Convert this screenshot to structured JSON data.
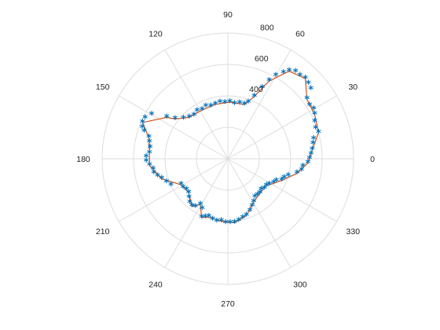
{
  "chart_data": {
    "type": "scatter",
    "projection": "polar",
    "theta_unit": "degrees",
    "theta_zero": "right",
    "theta_direction": "counterclockwise",
    "theta_ticks": [
      0,
      30,
      60,
      90,
      120,
      150,
      180,
      210,
      240,
      270,
      300,
      330
    ],
    "theta_tick_labels": [
      "0",
      "30",
      "60",
      "90",
      "120",
      "150",
      "180",
      "210",
      "240",
      "270",
      "300",
      "330"
    ],
    "rlim": [
      0,
      800
    ],
    "r_ticks": [
      0,
      200,
      400,
      600,
      800
    ],
    "r_tick_labels": [
      "400",
      "600",
      "800"
    ],
    "r_label_angle": 80,
    "grid": true,
    "colors": {
      "grid": "#dddddd",
      "scatter": "#0072bd",
      "line": "#d95319"
    },
    "series": [
      {
        "kind": "scatter",
        "marker": "*",
        "points": [
          [
            160,
            580
          ],
          [
            157,
            590
          ],
          [
            154,
            585
          ],
          [
            150,
            560
          ],
          [
            146,
            470
          ],
          [
            143,
            420
          ],
          [
            138,
            380
          ],
          [
            133,
            360
          ],
          [
            128,
            350
          ],
          [
            123,
            360
          ],
          [
            118,
            350
          ],
          [
            113,
            360
          ],
          [
            108,
            350
          ],
          [
            103,
            355
          ],
          [
            98,
            360
          ],
          [
            93,
            355
          ],
          [
            88,
            360
          ],
          [
            83,
            350
          ],
          [
            78,
            360
          ],
          [
            73,
            360
          ],
          [
            70,
            380
          ],
          [
            67,
            430
          ],
          [
            64,
            500
          ],
          [
            62,
            560
          ],
          [
            60,
            610
          ],
          [
            57,
            650
          ],
          [
            55,
            680
          ],
          [
            52,
            700
          ],
          [
            49,
            700
          ],
          [
            46,
            710
          ],
          [
            43,
            700
          ],
          [
            40,
            690
          ],
          [
            37,
            630
          ],
          [
            33,
            620
          ],
          [
            30,
            630
          ],
          [
            27,
            620
          ],
          [
            23,
            600
          ],
          [
            19,
            590
          ],
          [
            16,
            600
          ],
          [
            13,
            560
          ],
          [
            10,
            550
          ],
          [
            6,
            540
          ],
          [
            3,
            530
          ],
          [
            0,
            520
          ],
          [
            357,
            510
          ],
          [
            354,
            480
          ],
          [
            351,
            475
          ],
          [
            348,
            450
          ],
          [
            344,
            400
          ],
          [
            341,
            380
          ],
          [
            338,
            370
          ],
          [
            335,
            340
          ],
          [
            332,
            330
          ],
          [
            328,
            310
          ],
          [
            325,
            300
          ],
          [
            321,
            300
          ],
          [
            317,
            290
          ],
          [
            313,
            300
          ],
          [
            309,
            300
          ],
          [
            305,
            300
          ],
          [
            301,
            320
          ],
          [
            297,
            340
          ],
          [
            293,
            360
          ],
          [
            288,
            380
          ],
          [
            284,
            390
          ],
          [
            280,
            400
          ],
          [
            276,
            410
          ],
          [
            272,
            410
          ],
          [
            268,
            410
          ],
          [
            264,
            400
          ],
          [
            260,
            405
          ],
          [
            256,
            400
          ],
          [
            252,
            390
          ],
          [
            249,
            400
          ],
          [
            246,
            410
          ],
          [
            243,
            360
          ],
          [
            239,
            340
          ],
          [
            236,
            370
          ],
          [
            233,
            380
          ],
          [
            229,
            370
          ],
          [
            225,
            350
          ],
          [
            221,
            330
          ],
          [
            217,
            330
          ],
          [
            213,
            340
          ],
          [
            209,
            340
          ],
          [
            205,
            400
          ],
          [
            201,
            420
          ],
          [
            197,
            440
          ],
          [
            194,
            460
          ],
          [
            191,
            480
          ],
          [
            188,
            480
          ],
          [
            185,
            500
          ],
          [
            182,
            520
          ],
          [
            179,
            520
          ],
          [
            176,
            500
          ],
          [
            172,
            500
          ],
          [
            168,
            510
          ],
          [
            165,
            520
          ],
          [
            162,
            560
          ]
        ]
      },
      {
        "kind": "line",
        "points": [
          [
            157,
            590
          ],
          [
            146,
            470
          ],
          [
            143,
            420
          ],
          [
            133,
            360
          ],
          [
            118,
            350
          ],
          [
            103,
            355
          ],
          [
            88,
            360
          ],
          [
            73,
            360
          ],
          [
            67,
            430
          ],
          [
            62,
            560
          ],
          [
            55,
            680
          ],
          [
            46,
            710
          ],
          [
            37,
            630
          ],
          [
            27,
            620
          ],
          [
            16,
            600
          ],
          [
            6,
            540
          ],
          [
            357,
            510
          ],
          [
            348,
            450
          ],
          [
            338,
            370
          ],
          [
            325,
            300
          ],
          [
            313,
            300
          ],
          [
            301,
            320
          ],
          [
            288,
            380
          ],
          [
            276,
            410
          ],
          [
            264,
            400
          ],
          [
            252,
            390
          ],
          [
            246,
            410
          ],
          [
            239,
            340
          ],
          [
            233,
            380
          ],
          [
            221,
            330
          ],
          [
            209,
            340
          ],
          [
            197,
            440
          ],
          [
            185,
            500
          ],
          [
            176,
            500
          ],
          [
            165,
            520
          ],
          [
            157,
            590
          ]
        ]
      }
    ]
  }
}
